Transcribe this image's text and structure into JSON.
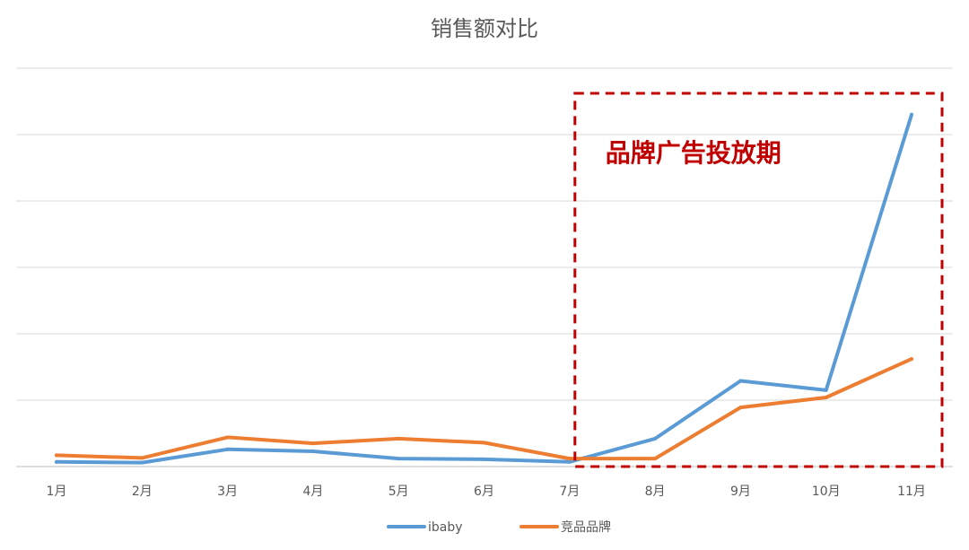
{
  "chart_data": {
    "type": "line",
    "title": "销售额对比",
    "xlabel": "",
    "ylabel": "",
    "categories": [
      "1月",
      "2月",
      "3月",
      "4月",
      "5月",
      "6月",
      "7月",
      "8月",
      "9月",
      "10月",
      "11月"
    ],
    "series": [
      {
        "name": "ibaby",
        "color": "#5b9bd5",
        "values": [
          0.7,
          0.6,
          2.6,
          2.3,
          1.2,
          1.1,
          0.7,
          4.2,
          12.9,
          11.5,
          53.0
        ]
      },
      {
        "name": "竞品品牌",
        "color": "#ed7d31",
        "values": [
          1.7,
          1.3,
          4.4,
          3.5,
          4.2,
          3.6,
          1.2,
          1.2,
          8.9,
          10.4,
          16.2
        ]
      }
    ],
    "ylim": [
      0,
      60
    ],
    "y_gridlines": [
      0,
      10,
      20,
      30,
      40,
      50,
      60
    ],
    "y_tick_labels_shown": false,
    "grid": true,
    "legend": {
      "placement": "bottom"
    },
    "annotation": {
      "text": "品牌广告投放期",
      "color": "#c00000",
      "category_span": [
        "7月",
        "11月"
      ]
    }
  }
}
